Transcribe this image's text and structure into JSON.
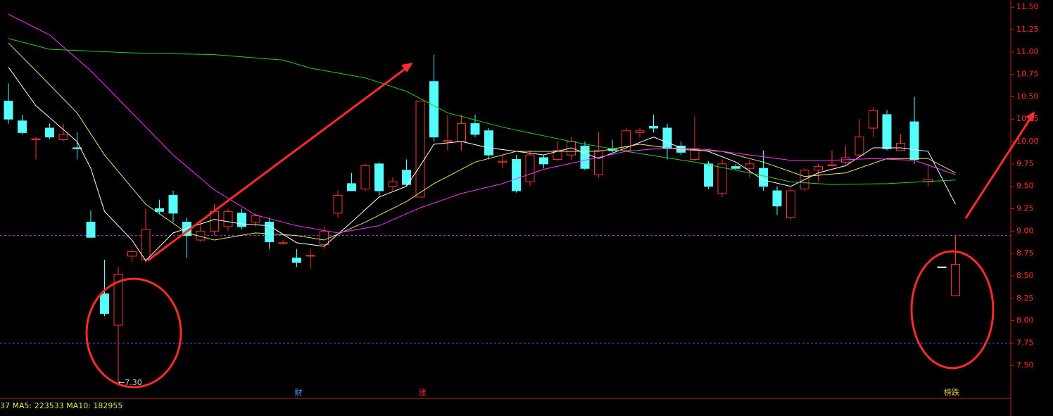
{
  "chart_data": {
    "type": "candlestick",
    "ylim": [
      7.14,
      11.58
    ],
    "yticks": [
      {
        "value": 7.5,
        "label": "7.50"
      },
      {
        "value": 7.75,
        "label": "7.75"
      },
      {
        "value": 8,
        "label": "8.00"
      },
      {
        "value": 8.25,
        "label": "8.25"
      },
      {
        "value": 8.5,
        "label": "8.50"
      },
      {
        "value": 8.75,
        "label": "8.75"
      },
      {
        "value": 9,
        "label": "9.00"
      },
      {
        "value": 9.25,
        "label": "9.25"
      },
      {
        "value": 9.5,
        "label": "9.50"
      },
      {
        "value": 9.75,
        "label": "9.75"
      },
      {
        "value": 10,
        "label": "10.00"
      },
      {
        "value": 10.25,
        "label": "10.25"
      },
      {
        "value": 10.5,
        "label": "10.50"
      },
      {
        "value": 10.75,
        "label": "10.75"
      },
      {
        "value": 11,
        "label": "11.00"
      },
      {
        "value": 11.25,
        "label": "11.25"
      },
      {
        "value": 11.5,
        "label": "11.50"
      }
    ],
    "open": [
      10.45,
      10.23,
      10.02,
      10.15,
      10.02,
      9.93,
      9.1,
      8.3,
      7.95,
      8.72,
      8.68,
      9.25,
      9.4,
      9.1,
      8.9,
      9.0,
      9.05,
      9.2,
      9.1,
      9.1,
      8.86,
      8.7,
      8.72,
      8.85,
      9.2,
      9.53,
      9.47,
      9.75,
      9.5,
      9.68,
      9.38,
      10.67,
      10.0,
      10.0,
      10.2,
      10.12,
      9.77,
      9.8,
      9.55,
      9.82,
      9.8,
      9.85,
      9.95,
      9.63,
      9.92,
      9.9,
      10.1,
      10.17,
      10.15,
      9.95,
      9.8,
      9.75,
      9.42,
      9.72,
      9.7,
      9.7,
      9.45,
      9.15,
      9.47,
      9.68,
      9.73,
      9.77,
      9.85,
      10.15,
      10.3,
      9.9,
      10.22,
      9.55,
      8.6,
      8.28
    ],
    "high": [
      10.65,
      10.3,
      10.05,
      10.2,
      10.2,
      10.1,
      9.23,
      8.68,
      8.6,
      8.8,
      9.25,
      9.35,
      9.45,
      9.15,
      9.1,
      9.3,
      9.25,
      9.25,
      9.2,
      9.15,
      8.9,
      8.8,
      8.8,
      9.05,
      9.45,
      9.65,
      9.75,
      9.77,
      9.6,
      9.8,
      10.45,
      10.97,
      10.3,
      10.3,
      10.3,
      10.15,
      9.85,
      9.85,
      9.9,
      9.85,
      10.0,
      10.05,
      10.0,
      10.1,
      10.02,
      10.15,
      10.15,
      10.3,
      10.2,
      10.0,
      10.28,
      9.78,
      9.8,
      9.75,
      9.8,
      9.9,
      9.5,
      9.47,
      9.7,
      9.75,
      9.9,
      9.95,
      10.25,
      10.38,
      10.35,
      10.08,
      10.5,
      9.75,
      8.6,
      8.95
    ],
    "low": [
      10.2,
      10.08,
      9.8,
      10.03,
      10.0,
      9.8,
      8.93,
      8.05,
      7.3,
      8.65,
      8.65,
      9.2,
      9.1,
      8.7,
      8.88,
      8.95,
      9.0,
      9.02,
      9.05,
      8.8,
      8.85,
      8.6,
      8.58,
      8.8,
      9.15,
      9.45,
      9.45,
      9.4,
      9.45,
      9.5,
      9.38,
      10.0,
      9.9,
      9.9,
      10.05,
      9.8,
      9.7,
      9.43,
      9.5,
      9.7,
      9.78,
      9.8,
      9.68,
      9.6,
      9.88,
      9.88,
      10.05,
      10.1,
      9.8,
      9.85,
      9.78,
      9.47,
      9.38,
      9.68,
      9.6,
      9.45,
      9.18,
      9.13,
      9.45,
      9.55,
      9.72,
      9.75,
      9.82,
      10.05,
      9.9,
      9.9,
      9.75,
      9.5,
      8.6,
      8.28
    ],
    "close": [
      10.25,
      10.1,
      10.03,
      10.05,
      10.08,
      9.92,
      8.93,
      8.08,
      8.52,
      8.77,
      9.02,
      9.22,
      9.2,
      8.95,
      9.0,
      9.22,
      9.22,
      9.05,
      9.17,
      8.88,
      8.87,
      8.65,
      8.73,
      9.0,
      9.4,
      9.45,
      9.73,
      9.45,
      9.55,
      9.52,
      10.45,
      10.05,
      10.01,
      10.2,
      10.08,
      9.85,
      9.78,
      9.45,
      9.85,
      9.75,
      9.9,
      10.0,
      9.7,
      9.9,
      9.9,
      10.12,
      10.12,
      10.15,
      9.92,
      9.88,
      9.92,
      9.5,
      9.75,
      9.7,
      9.75,
      9.5,
      9.28,
      9.45,
      9.68,
      9.72,
      9.74,
      9.82,
      10.05,
      10.35,
      9.92,
      9.98,
      9.8,
      9.58,
      8.6,
      8.63
    ],
    "up_color": "#ff3232",
    "down_color": "#54ffff",
    "flat_color": "#ffffff",
    "lines": [
      {
        "color": "#ffffff",
        "x": [
          0,
          2,
          5,
          6,
          7,
          9,
          10,
          12,
          15,
          17,
          19,
          21,
          23,
          25,
          27,
          29,
          30,
          31,
          33,
          35,
          37,
          39,
          41,
          43,
          45,
          47,
          49,
          51,
          53,
          55,
          57,
          59,
          61,
          63,
          65,
          67,
          69
        ],
        "values": [
          10.83,
          10.4,
          10.0,
          9.7,
          9.22,
          8.9,
          8.67,
          8.98,
          9.13,
          9.08,
          9.06,
          8.87,
          8.83,
          9.1,
          9.38,
          9.5,
          9.73,
          9.97,
          10.0,
          9.93,
          9.89,
          9.85,
          9.93,
          9.81,
          9.93,
          10.05,
          9.93,
          9.89,
          9.77,
          9.57,
          9.5,
          9.65,
          9.73,
          9.93,
          9.93,
          9.89,
          9.3
        ]
      },
      {
        "color": "#e6e66a",
        "x": [
          0,
          2,
          5,
          7,
          10,
          13,
          15,
          18,
          21,
          23,
          26,
          29,
          31,
          34,
          37,
          40,
          43,
          46,
          49,
          52,
          55,
          58,
          61,
          64,
          67,
          69
        ],
        "values": [
          11.1,
          10.79,
          10.32,
          9.85,
          9.3,
          8.98,
          8.9,
          8.98,
          8.95,
          8.9,
          9.1,
          9.33,
          9.53,
          9.77,
          9.89,
          9.89,
          9.89,
          9.97,
          9.91,
          9.89,
          9.77,
          9.61,
          9.65,
          9.81,
          9.81,
          9.65
        ]
      },
      {
        "color": "#ff30ff",
        "x": [
          0,
          3,
          6,
          9,
          12,
          15,
          18,
          21,
          24,
          27,
          30,
          33,
          36,
          39,
          42,
          45,
          48,
          51,
          54,
          57,
          60,
          63,
          66,
          69
        ],
        "values": [
          11.42,
          11.19,
          10.79,
          10.32,
          9.85,
          9.46,
          9.18,
          9.06,
          8.98,
          9.06,
          9.26,
          9.42,
          9.53,
          9.69,
          9.79,
          9.89,
          9.93,
          9.91,
          9.85,
          9.79,
          9.79,
          9.81,
          9.79,
          9.63
        ]
      },
      {
        "color": "#20d020",
        "x": [
          0,
          3,
          9,
          15,
          20,
          22,
          26,
          29,
          32,
          36,
          41,
          45,
          50,
          54,
          57,
          60,
          64,
          69
        ],
        "values": [
          11.15,
          11.03,
          10.99,
          10.97,
          10.91,
          10.82,
          10.71,
          10.56,
          10.32,
          10.16,
          10.0,
          9.89,
          9.77,
          9.65,
          9.55,
          9.52,
          9.53,
          9.57
        ]
      }
    ],
    "ref_lines": [
      {
        "value": 8.95,
        "color": "#a040c0"
      },
      {
        "value": 7.75,
        "color": "#4060ff"
      }
    ],
    "low_label": "←7.30",
    "event_markers": [
      "财",
      "涨",
      "榜跌"
    ],
    "volume_info": "37  MA5: 223533  MA10: 182955"
  }
}
